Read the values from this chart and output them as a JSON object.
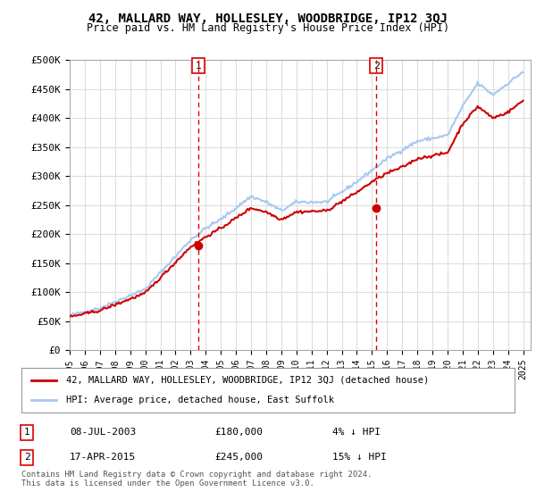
{
  "title": "42, MALLARD WAY, HOLLESLEY, WOODBRIDGE, IP12 3QJ",
  "subtitle": "Price paid vs. HM Land Registry's House Price Index (HPI)",
  "ylabel_ticks": [
    "£0",
    "£50K",
    "£100K",
    "£150K",
    "£200K",
    "£250K",
    "£300K",
    "£350K",
    "£400K",
    "£450K",
    "£500K"
  ],
  "ytick_values": [
    0,
    50000,
    100000,
    150000,
    200000,
    250000,
    300000,
    350000,
    400000,
    450000,
    500000
  ],
  "ylim": [
    0,
    500000
  ],
  "xlim_start": 1995.0,
  "xlim_end": 2025.5,
  "hpi_color": "#a8c8f0",
  "price_color": "#cc0000",
  "vline_color": "#dd0000",
  "marker1_date": 2003.52,
  "marker1_price": 180000,
  "marker1_label": "1",
  "marker2_date": 2015.29,
  "marker2_price": 245000,
  "marker2_label": "2",
  "legend_line1": "42, MALLARD WAY, HOLLESLEY, WOODBRIDGE, IP12 3QJ (detached house)",
  "legend_line2": "HPI: Average price, detached house, East Suffolk",
  "table_row1_num": "1",
  "table_row1_date": "08-JUL-2003",
  "table_row1_price": "£180,000",
  "table_row1_hpi": "4% ↓ HPI",
  "table_row2_num": "2",
  "table_row2_date": "17-APR-2015",
  "table_row2_price": "£245,000",
  "table_row2_hpi": "15% ↓ HPI",
  "footer": "Contains HM Land Registry data © Crown copyright and database right 2024.\nThis data is licensed under the Open Government Licence v3.0.",
  "bg_color": "#ffffff",
  "plot_bg_color": "#ffffff",
  "grid_color": "#dddddd"
}
